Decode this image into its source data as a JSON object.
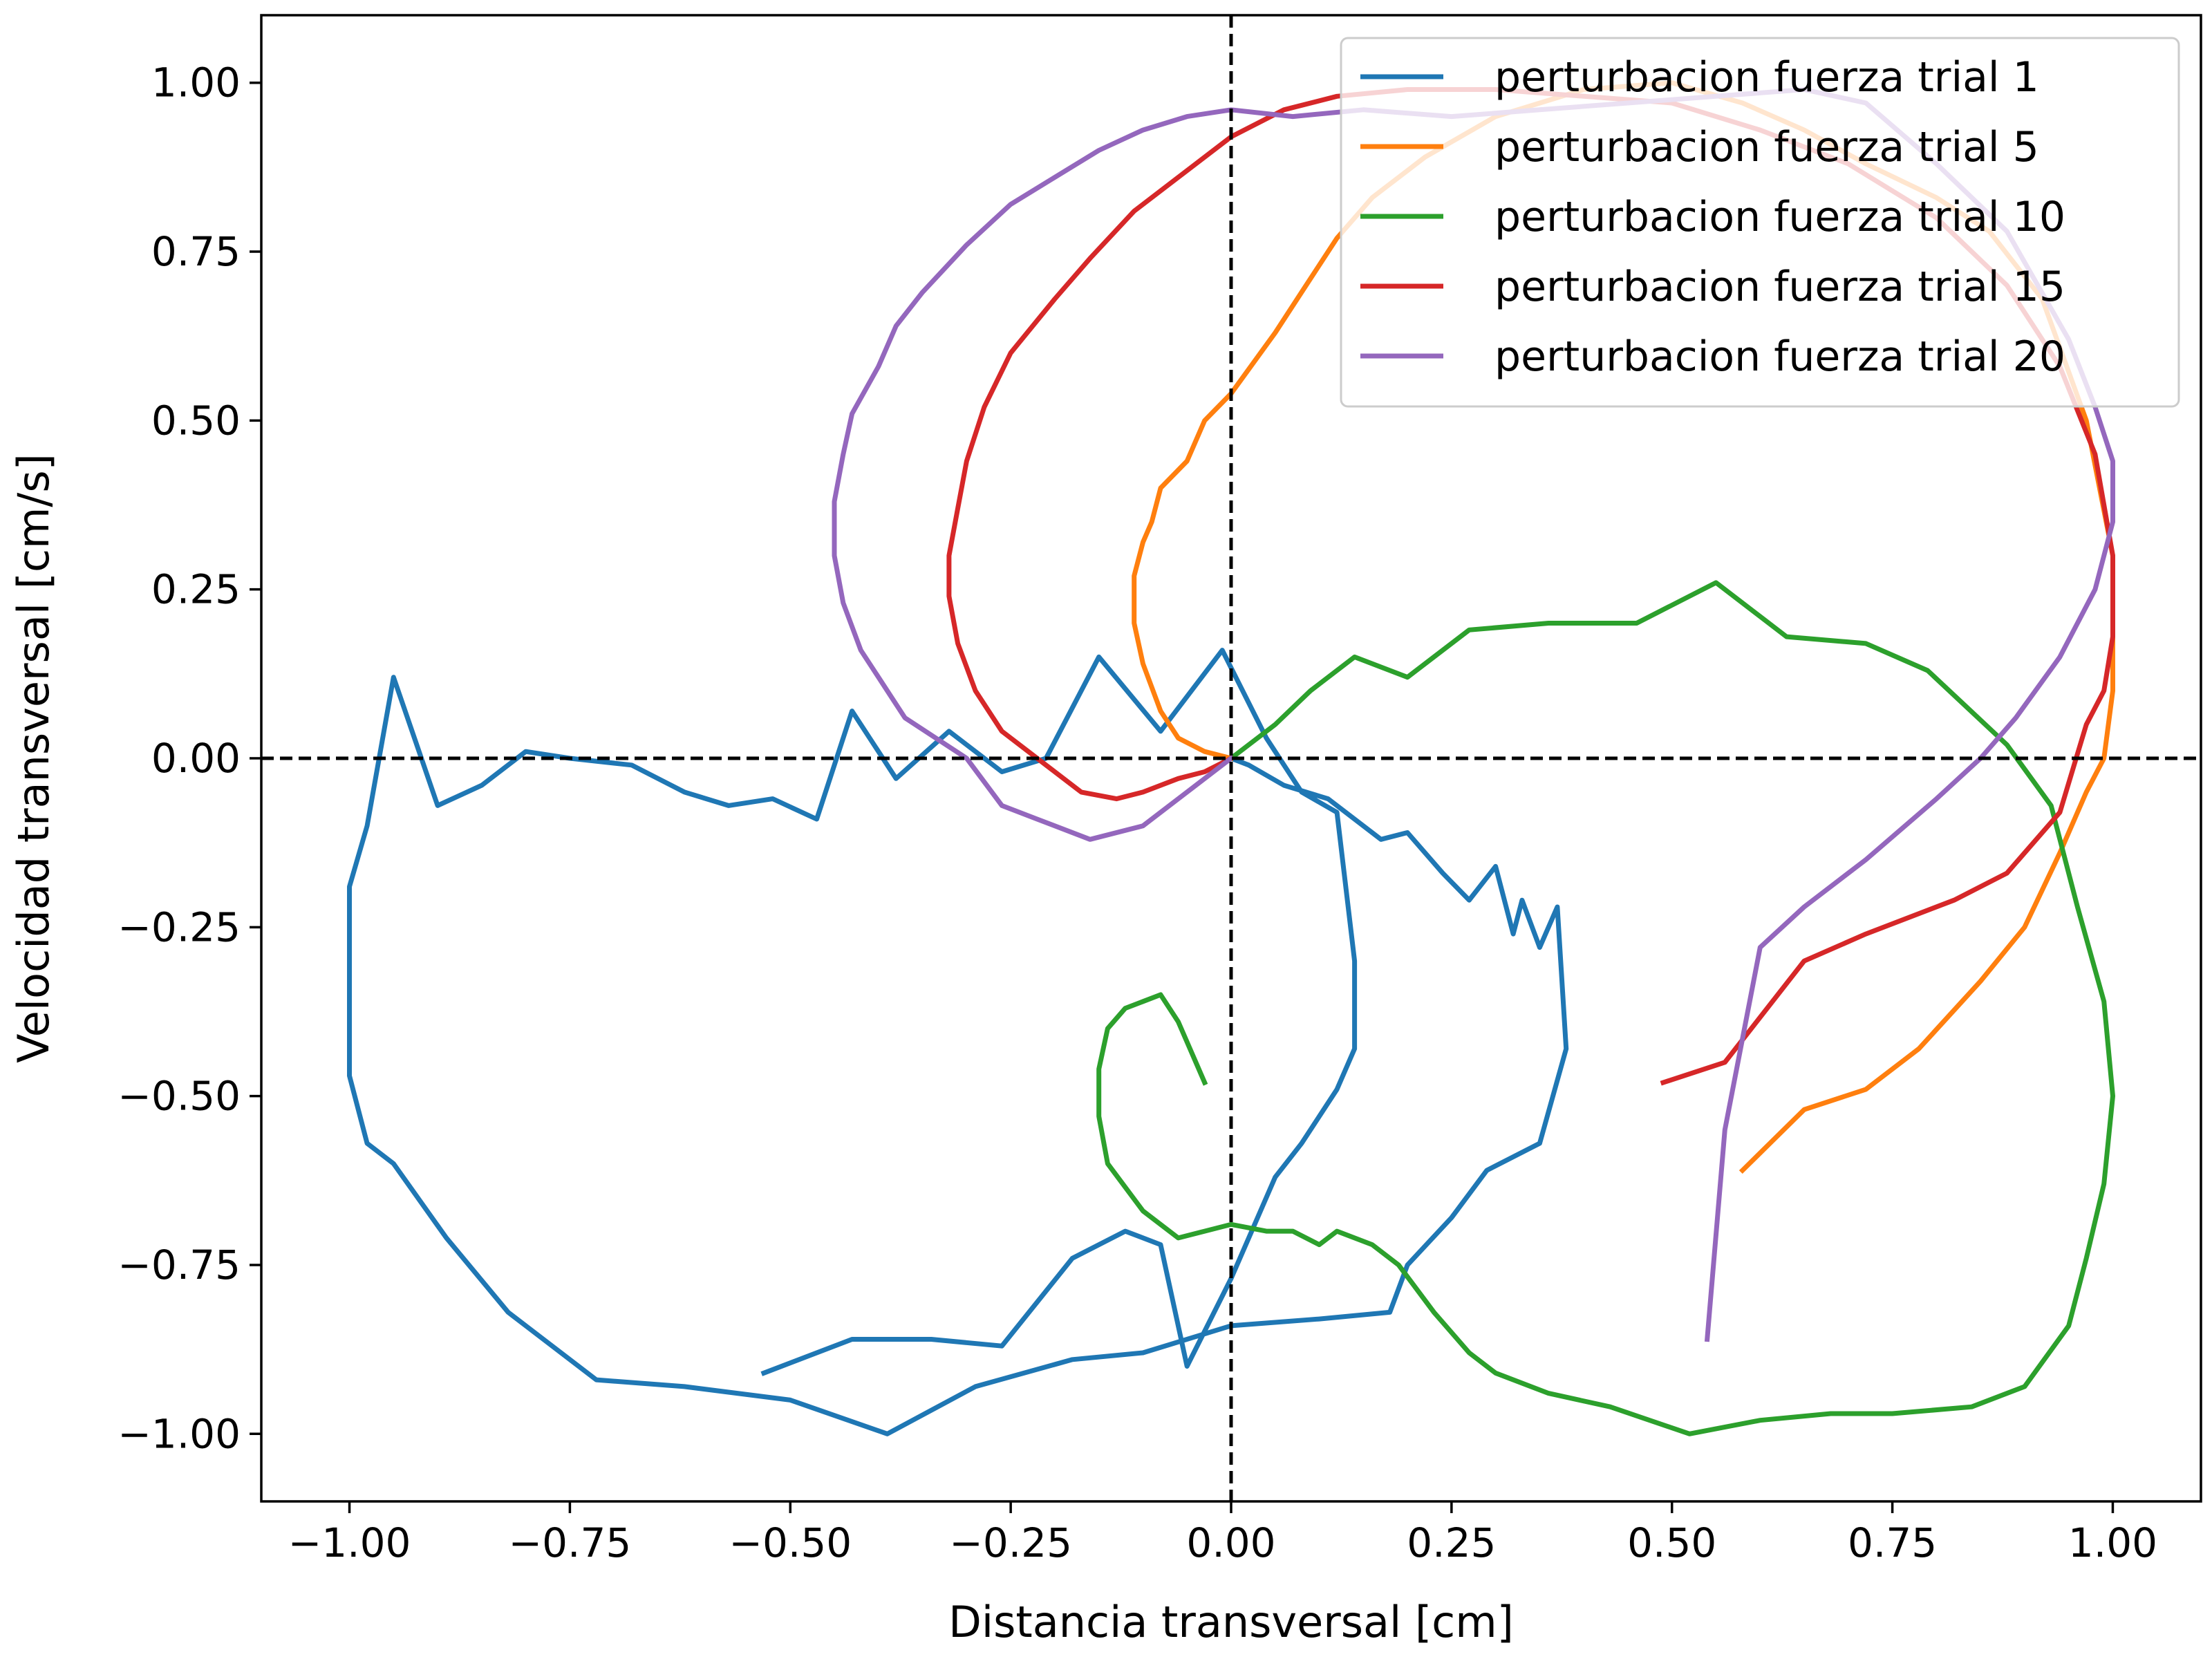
{
  "chart_data": {
    "type": "line",
    "title": "",
    "xlabel": "Distancia transversal [cm]",
    "ylabel": "Velocidad transversal [cm/s]",
    "xlim": [
      -1.1,
      1.1
    ],
    "ylim": [
      -1.1,
      1.1
    ],
    "xticks": [
      -1.0,
      -0.75,
      -0.5,
      -0.25,
      0.0,
      0.25,
      0.5,
      0.75,
      1.0
    ],
    "yticks": [
      -1.0,
      -0.75,
      -0.5,
      -0.25,
      0.0,
      0.25,
      0.5,
      0.75,
      1.0
    ],
    "xtick_labels": [
      "−1.00",
      "−0.75",
      "−0.50",
      "−0.25",
      "0.00",
      "0.25",
      "0.50",
      "0.75",
      "1.00"
    ],
    "ytick_labels": [
      "−1.00",
      "−0.75",
      "−0.50",
      "−0.25",
      "0.00",
      "0.25",
      "0.50",
      "0.75",
      "1.00"
    ],
    "grid": false,
    "reference_lines": {
      "x": 0,
      "y": 0,
      "style": "dashed"
    },
    "legend_position": "top-right",
    "series": [
      {
        "name": "perturbacion fuerza trial 1",
        "color": "#1f77b4",
        "points": [
          [
            0,
            0
          ],
          [
            0.02,
            -0.01
          ],
          [
            0.06,
            -0.04
          ],
          [
            0.11,
            -0.06
          ],
          [
            0.17,
            -0.12
          ],
          [
            0.2,
            -0.11
          ],
          [
            0.24,
            -0.17
          ],
          [
            0.27,
            -0.21
          ],
          [
            0.3,
            -0.16
          ],
          [
            0.32,
            -0.26
          ],
          [
            0.33,
            -0.21
          ],
          [
            0.35,
            -0.28
          ],
          [
            0.37,
            -0.22
          ],
          [
            0.38,
            -0.43
          ],
          [
            0.35,
            -0.57
          ],
          [
            0.29,
            -0.61
          ],
          [
            0.25,
            -0.68
          ],
          [
            0.2,
            -0.75
          ],
          [
            0.18,
            -0.82
          ],
          [
            0.1,
            -0.83
          ],
          [
            0.0,
            -0.84
          ],
          [
            -0.1,
            -0.88
          ],
          [
            -0.18,
            -0.89
          ],
          [
            -0.29,
            -0.93
          ],
          [
            -0.39,
            -1.0
          ],
          [
            -0.5,
            -0.95
          ],
          [
            -0.62,
            -0.93
          ],
          [
            -0.72,
            -0.92
          ],
          [
            -0.82,
            -0.82
          ],
          [
            -0.89,
            -0.71
          ],
          [
            -0.95,
            -0.6
          ],
          [
            -0.98,
            -0.57
          ],
          [
            -1.0,
            -0.47
          ],
          [
            -1.0,
            -0.19
          ],
          [
            -0.98,
            -0.1
          ],
          [
            -0.95,
            0.12
          ],
          [
            -0.9,
            -0.07
          ],
          [
            -0.85,
            -0.04
          ],
          [
            -0.8,
            0.01
          ],
          [
            -0.75,
            0.0
          ],
          [
            -0.68,
            -0.01
          ],
          [
            -0.62,
            -0.05
          ],
          [
            -0.57,
            -0.07
          ],
          [
            -0.52,
            -0.06
          ],
          [
            -0.47,
            -0.09
          ],
          [
            -0.43,
            0.07
          ],
          [
            -0.38,
            -0.03
          ],
          [
            -0.32,
            0.04
          ],
          [
            -0.26,
            -0.02
          ],
          [
            -0.21,
            0.0
          ],
          [
            -0.15,
            0.15
          ],
          [
            -0.08,
            0.04
          ],
          [
            -0.01,
            0.16
          ],
          [
            0.04,
            0.03
          ],
          [
            0.08,
            -0.05
          ],
          [
            0.12,
            -0.08
          ],
          [
            0.14,
            -0.3
          ],
          [
            0.14,
            -0.43
          ],
          [
            0.12,
            -0.49
          ],
          [
            0.08,
            -0.57
          ],
          [
            0.05,
            -0.62
          ],
          [
            0.0,
            -0.77
          ],
          [
            -0.05,
            -0.9
          ],
          [
            -0.08,
            -0.72
          ],
          [
            -0.12,
            -0.7
          ],
          [
            -0.18,
            -0.74
          ],
          [
            -0.26,
            -0.87
          ],
          [
            -0.34,
            -0.86
          ],
          [
            -0.43,
            -0.86
          ],
          [
            -0.53,
            -0.91
          ]
        ]
      },
      {
        "name": "perturbacion fuerza trial 5",
        "color": "#ff7f0e",
        "points": [
          [
            0,
            0
          ],
          [
            -0.03,
            0.01
          ],
          [
            -0.06,
            0.03
          ],
          [
            -0.08,
            0.07
          ],
          [
            -0.1,
            0.14
          ],
          [
            -0.11,
            0.2
          ],
          [
            -0.11,
            0.27
          ],
          [
            -0.1,
            0.32
          ],
          [
            -0.09,
            0.35
          ],
          [
            -0.08,
            0.4
          ],
          [
            -0.05,
            0.44
          ],
          [
            -0.03,
            0.5
          ],
          [
            0.0,
            0.54
          ],
          [
            0.05,
            0.63
          ],
          [
            0.08,
            0.69
          ],
          [
            0.12,
            0.77
          ],
          [
            0.16,
            0.83
          ],
          [
            0.22,
            0.89
          ],
          [
            0.3,
            0.95
          ],
          [
            0.4,
            0.99
          ],
          [
            0.5,
            1.0
          ],
          [
            0.58,
            0.97
          ],
          [
            0.65,
            0.93
          ],
          [
            0.72,
            0.88
          ],
          [
            0.8,
            0.83
          ],
          [
            0.86,
            0.78
          ],
          [
            0.92,
            0.68
          ],
          [
            0.97,
            0.5
          ],
          [
            1.0,
            0.3
          ],
          [
            1.0,
            0.1
          ],
          [
            0.99,
            0.0
          ],
          [
            0.97,
            -0.05
          ],
          [
            0.94,
            -0.14
          ],
          [
            0.9,
            -0.25
          ],
          [
            0.85,
            -0.33
          ],
          [
            0.78,
            -0.43
          ],
          [
            0.72,
            -0.49
          ],
          [
            0.65,
            -0.52
          ],
          [
            0.58,
            -0.61
          ]
        ]
      },
      {
        "name": "perturbacion fuerza trial 10",
        "color": "#2ca02c",
        "points": [
          [
            0,
            0
          ],
          [
            0.05,
            0.05
          ],
          [
            0.09,
            0.1
          ],
          [
            0.14,
            0.15
          ],
          [
            0.2,
            0.12
          ],
          [
            0.27,
            0.19
          ],
          [
            0.36,
            0.2
          ],
          [
            0.46,
            0.2
          ],
          [
            0.55,
            0.26
          ],
          [
            0.63,
            0.18
          ],
          [
            0.72,
            0.17
          ],
          [
            0.79,
            0.13
          ],
          [
            0.88,
            0.02
          ],
          [
            0.93,
            -0.07
          ],
          [
            0.96,
            -0.22
          ],
          [
            0.99,
            -0.36
          ],
          [
            1.0,
            -0.5
          ],
          [
            0.99,
            -0.63
          ],
          [
            0.97,
            -0.74
          ],
          [
            0.95,
            -0.84
          ],
          [
            0.9,
            -0.93
          ],
          [
            0.84,
            -0.96
          ],
          [
            0.75,
            -0.97
          ],
          [
            0.68,
            -0.97
          ],
          [
            0.6,
            -0.98
          ],
          [
            0.52,
            -1.0
          ],
          [
            0.43,
            -0.96
          ],
          [
            0.36,
            -0.94
          ],
          [
            0.3,
            -0.91
          ],
          [
            0.27,
            -0.88
          ],
          [
            0.23,
            -0.82
          ],
          [
            0.19,
            -0.75
          ],
          [
            0.16,
            -0.72
          ],
          [
            0.12,
            -0.7
          ],
          [
            0.1,
            -0.72
          ],
          [
            0.07,
            -0.7
          ],
          [
            0.04,
            -0.7
          ],
          [
            0.0,
            -0.69
          ],
          [
            -0.03,
            -0.7
          ],
          [
            -0.06,
            -0.71
          ],
          [
            -0.1,
            -0.67
          ],
          [
            -0.14,
            -0.6
          ],
          [
            -0.15,
            -0.53
          ],
          [
            -0.15,
            -0.46
          ],
          [
            -0.14,
            -0.4
          ],
          [
            -0.12,
            -0.37
          ],
          [
            -0.1,
            -0.36
          ],
          [
            -0.08,
            -0.35
          ],
          [
            -0.06,
            -0.39
          ],
          [
            -0.04,
            -0.45
          ],
          [
            -0.03,
            -0.48
          ]
        ]
      },
      {
        "name": "perturbacion fuerza trial 15",
        "color": "#d62728",
        "points": [
          [
            0,
            0
          ],
          [
            -0.03,
            -0.02
          ],
          [
            -0.06,
            -0.03
          ],
          [
            -0.1,
            -0.05
          ],
          [
            -0.13,
            -0.06
          ],
          [
            -0.17,
            -0.05
          ],
          [
            -0.21,
            -0.01
          ],
          [
            -0.26,
            0.04
          ],
          [
            -0.29,
            0.1
          ],
          [
            -0.31,
            0.17
          ],
          [
            -0.32,
            0.24
          ],
          [
            -0.32,
            0.3
          ],
          [
            -0.31,
            0.37
          ],
          [
            -0.3,
            0.44
          ],
          [
            -0.28,
            0.52
          ],
          [
            -0.25,
            0.6
          ],
          [
            -0.2,
            0.68
          ],
          [
            -0.16,
            0.74
          ],
          [
            -0.11,
            0.81
          ],
          [
            -0.06,
            0.86
          ],
          [
            0.0,
            0.92
          ],
          [
            0.06,
            0.96
          ],
          [
            0.12,
            0.98
          ],
          [
            0.2,
            0.99
          ],
          [
            0.3,
            0.99
          ],
          [
            0.4,
            0.98
          ],
          [
            0.5,
            0.97
          ],
          [
            0.6,
            0.93
          ],
          [
            0.7,
            0.88
          ],
          [
            0.8,
            0.8
          ],
          [
            0.88,
            0.7
          ],
          [
            0.94,
            0.58
          ],
          [
            0.98,
            0.45
          ],
          [
            1.0,
            0.3
          ],
          [
            1.0,
            0.18
          ],
          [
            0.99,
            0.1
          ],
          [
            0.97,
            0.05
          ],
          [
            0.94,
            -0.08
          ],
          [
            0.88,
            -0.17
          ],
          [
            0.82,
            -0.21
          ],
          [
            0.72,
            -0.26
          ],
          [
            0.65,
            -0.3
          ],
          [
            0.56,
            -0.45
          ],
          [
            0.49,
            -0.48
          ]
        ]
      },
      {
        "name": "perturbacion fuerza trial 20",
        "color": "#9467bd",
        "points": [
          [
            0,
            0
          ],
          [
            -0.02,
            -0.02
          ],
          [
            -0.05,
            -0.05
          ],
          [
            -0.1,
            -0.1
          ],
          [
            -0.16,
            -0.12
          ],
          [
            -0.22,
            -0.09
          ],
          [
            -0.26,
            -0.07
          ],
          [
            -0.3,
            0.0
          ],
          [
            -0.37,
            0.06
          ],
          [
            -0.42,
            0.16
          ],
          [
            -0.44,
            0.23
          ],
          [
            -0.45,
            0.3
          ],
          [
            -0.45,
            0.38
          ],
          [
            -0.44,
            0.45
          ],
          [
            -0.43,
            0.51
          ],
          [
            -0.4,
            0.58
          ],
          [
            -0.38,
            0.64
          ],
          [
            -0.35,
            0.69
          ],
          [
            -0.3,
            0.76
          ],
          [
            -0.25,
            0.82
          ],
          [
            -0.2,
            0.86
          ],
          [
            -0.15,
            0.9
          ],
          [
            -0.1,
            0.93
          ],
          [
            -0.05,
            0.95
          ],
          [
            0.0,
            0.96
          ],
          [
            0.07,
            0.95
          ],
          [
            0.15,
            0.96
          ],
          [
            0.25,
            0.95
          ],
          [
            0.35,
            0.96
          ],
          [
            0.45,
            0.97
          ],
          [
            0.55,
            0.98
          ],
          [
            0.65,
            0.99
          ],
          [
            0.72,
            0.97
          ],
          [
            0.8,
            0.88
          ],
          [
            0.88,
            0.78
          ],
          [
            0.95,
            0.62
          ],
          [
            0.98,
            0.52
          ],
          [
            1.0,
            0.44
          ],
          [
            1.0,
            0.35
          ],
          [
            0.98,
            0.25
          ],
          [
            0.94,
            0.15
          ],
          [
            0.89,
            0.06
          ],
          [
            0.85,
            0.0
          ],
          [
            0.8,
            -0.06
          ],
          [
            0.72,
            -0.15
          ],
          [
            0.65,
            -0.22
          ],
          [
            0.6,
            -0.28
          ],
          [
            0.56,
            -0.55
          ],
          [
            0.54,
            -0.86
          ]
        ]
      }
    ]
  }
}
